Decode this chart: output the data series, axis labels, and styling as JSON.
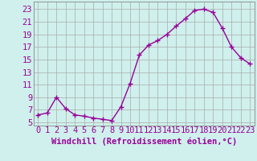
{
  "x": [
    0,
    1,
    2,
    3,
    4,
    5,
    6,
    7,
    8,
    9,
    10,
    11,
    12,
    13,
    14,
    15,
    16,
    17,
    18,
    19,
    20,
    21,
    22,
    23
  ],
  "y": [
    6.2,
    6.5,
    9.0,
    7.2,
    6.2,
    6.0,
    5.7,
    5.5,
    5.3,
    7.5,
    11.2,
    15.7,
    17.3,
    18.0,
    19.0,
    20.3,
    21.5,
    22.8,
    23.0,
    22.5,
    20.0,
    17.0,
    15.3,
    14.3
  ],
  "line_color": "#990099",
  "marker": "+",
  "marker_size": 4,
  "marker_linewidth": 1.0,
  "background_color": "#cff0ec",
  "grid_color": "#aaaaaa",
  "xlabel": "Windchill (Refroidissement éolien,°C)",
  "ylabel": "",
  "title": "",
  "xlim": [
    -0.5,
    23.5
  ],
  "ylim": [
    4.5,
    24.2
  ],
  "yticks": [
    5,
    7,
    9,
    11,
    13,
    15,
    17,
    19,
    21,
    23
  ],
  "xticks": [
    0,
    1,
    2,
    3,
    4,
    5,
    6,
    7,
    8,
    9,
    10,
    11,
    12,
    13,
    14,
    15,
    16,
    17,
    18,
    19,
    20,
    21,
    22,
    23
  ],
  "xlabel_fontsize": 7.5,
  "tick_fontsize": 7.5,
  "tick_color": "#990099",
  "axis_color": "#888888",
  "line_width": 1.0
}
